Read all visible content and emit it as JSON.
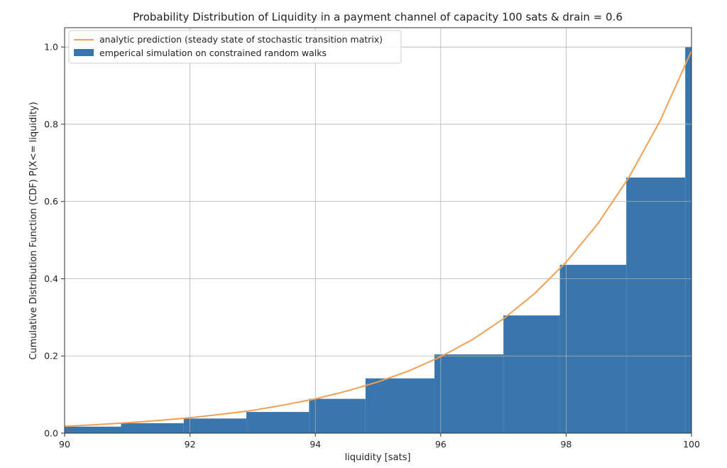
{
  "chart_data": {
    "type": "bar",
    "title": "Probability Distribution of Liquidity in a payment channel of capacity 100 sats & drain = 0.6",
    "xlabel": "liquidity [sats]",
    "ylabel": "Cumulative Distribution Function (CDF) P(X<= liquidity)",
    "xlim": [
      90,
      100
    ],
    "ylim": [
      0,
      1.05
    ],
    "x_ticks": [
      "90",
      "92",
      "94",
      "96",
      "98",
      "100"
    ],
    "y_ticks": [
      "0.0",
      "0.2",
      "0.4",
      "0.6",
      "0.8",
      "1.0"
    ],
    "grid": true,
    "legend_position": "top-left",
    "series": [
      {
        "name": "analytic prediction (steady state of stochastic transition matrix)",
        "kind": "line",
        "color": "#f0a050",
        "x": [
          90,
          90.5,
          91,
          91.5,
          92,
          92.5,
          93,
          93.5,
          94,
          94.5,
          95,
          95.5,
          96,
          96.5,
          97,
          97.5,
          98,
          98.5,
          99,
          99.5,
          100
        ],
        "y": [
          0.018,
          0.022,
          0.027,
          0.033,
          0.04,
          0.049,
          0.059,
          0.073,
          0.089,
          0.109,
          0.133,
          0.162,
          0.198,
          0.242,
          0.296,
          0.362,
          0.443,
          0.541,
          0.662,
          0.809,
          0.99
        ]
      },
      {
        "name": "emperical simulation on constrained random walks",
        "kind": "step-histogram",
        "color": "#3a76ae",
        "bins": [
          [
            90.0,
            90.9,
            0.017
          ],
          [
            90.9,
            91.9,
            0.026
          ],
          [
            91.9,
            92.9,
            0.038
          ],
          [
            92.9,
            93.9,
            0.055
          ],
          [
            93.9,
            94.8,
            0.089
          ],
          [
            94.8,
            95.9,
            0.142
          ],
          [
            95.9,
            97.0,
            0.204
          ],
          [
            97.0,
            97.9,
            0.305
          ],
          [
            97.9,
            98.96,
            0.436
          ],
          [
            98.96,
            99.9,
            0.662
          ],
          [
            99.9,
            100.0,
            1.0
          ]
        ]
      }
    ]
  }
}
